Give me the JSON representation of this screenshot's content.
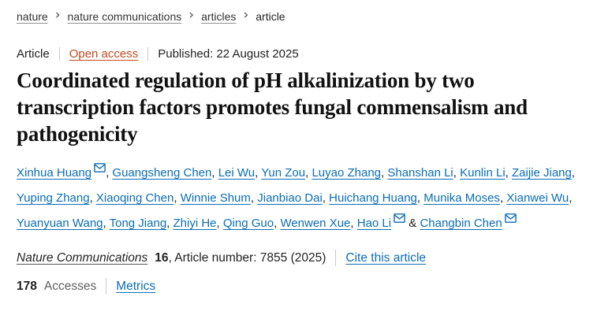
{
  "breadcrumb": {
    "separator": "›",
    "items": [
      {
        "label": "nature",
        "current": false
      },
      {
        "label": "nature communications",
        "current": false
      },
      {
        "label": "articles",
        "current": false
      },
      {
        "label": "article",
        "current": true
      }
    ]
  },
  "meta": {
    "article_type": "Article",
    "open_access_label": "Open access",
    "published": "Published: 22 August 2025"
  },
  "title": "Coordinated regulation of pH alkalinization by two transcription factors promotes fungal commensalism and pathogenicity",
  "author_list": {
    "separator": ",",
    "last_separator": "&",
    "email_icon": "envelope-icon",
    "authors": [
      {
        "name": "Xinhua Huang",
        "email": true
      },
      {
        "name": "Guangsheng Chen",
        "email": false
      },
      {
        "name": "Lei Wu",
        "email": false
      },
      {
        "name": "Yun Zou",
        "email": false
      },
      {
        "name": "Luyao Zhang",
        "email": false
      },
      {
        "name": "Shanshan Li",
        "email": false
      },
      {
        "name": "Kunlin Li",
        "email": false
      },
      {
        "name": "Zaijie Jiang",
        "email": false
      },
      {
        "name": "Yuping Zhang",
        "email": false
      },
      {
        "name": "Xiaoqing Chen",
        "email": false
      },
      {
        "name": "Winnie Shum",
        "email": false
      },
      {
        "name": "Jianbiao Dai",
        "email": false
      },
      {
        "name": "Huichang Huang",
        "email": false
      },
      {
        "name": "Munika Moses",
        "email": false
      },
      {
        "name": "Xianwei Wu",
        "email": false
      },
      {
        "name": "Yuanyuan Wang",
        "email": false
      },
      {
        "name": "Tong Jiang",
        "email": false
      },
      {
        "name": "Zhiyi He",
        "email": false
      },
      {
        "name": "Qing Guo",
        "email": false
      },
      {
        "name": "Wenwen Xue",
        "email": false
      },
      {
        "name": "Hao Li",
        "email": true
      },
      {
        "name": "Changbin Chen",
        "email": true
      }
    ]
  },
  "journal": {
    "name": "Nature Communications",
    "volume": "16",
    "reference": ", Article number: 7855 (2025)",
    "cite_label": "Cite this article"
  },
  "metrics": {
    "accesses_count": "178",
    "accesses_label": "Accesses",
    "metrics_label": "Metrics"
  },
  "colors": {
    "link_blue": "#0b6db4",
    "open_access_orange": "#c04a21",
    "body_text": "#222222",
    "muted_gray": "#616161",
    "divider_gray": "#c8c8c8",
    "title_black": "#111111"
  }
}
